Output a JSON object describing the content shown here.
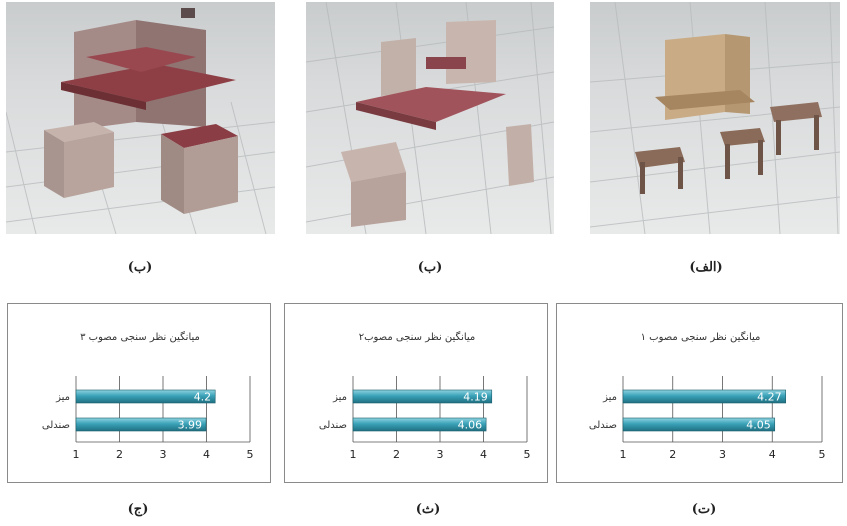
{
  "images": [
    {
      "label": "(ب)"
    },
    {
      "label": "(ب)"
    },
    {
      "label": "(الف)"
    }
  ],
  "chart_labels": [
    "(ج)",
    "(ث)",
    "(ت)"
  ],
  "chart_data": [
    {
      "type": "bar",
      "title": "میانگین نظر سنجی مصوب ۳",
      "categories": [
        "میز",
        "صندلی"
      ],
      "values": [
        4.2,
        3.99
      ],
      "value_labels": [
        "4.2",
        "3.99"
      ],
      "xlim": [
        1,
        5
      ],
      "xticks": [
        "1",
        "2",
        "3",
        "4",
        "5"
      ],
      "bar_color": "#3aa2b8",
      "grid": true
    },
    {
      "type": "bar",
      "title": "میانگین نظر سنجی مصوب۲",
      "categories": [
        "میز",
        "صندلی"
      ],
      "values": [
        4.19,
        4.06
      ],
      "value_labels": [
        "4.19",
        "4.06"
      ],
      "xlim": [
        1,
        5
      ],
      "xticks": [
        "1",
        "2",
        "3",
        "4",
        "5"
      ],
      "bar_color": "#3aa2b8",
      "grid": true
    },
    {
      "type": "bar",
      "title": "میانگین نظر سنجی مصوب ۱",
      "categories": [
        "میز",
        "صندلی"
      ],
      "values": [
        4.27,
        4.05
      ],
      "value_labels": [
        "4.27",
        "4.05"
      ],
      "xlim": [
        1,
        5
      ],
      "xticks": [
        "1",
        "2",
        "3",
        "4",
        "5"
      ],
      "bar_color": "#3aa2b8",
      "grid": true
    }
  ]
}
